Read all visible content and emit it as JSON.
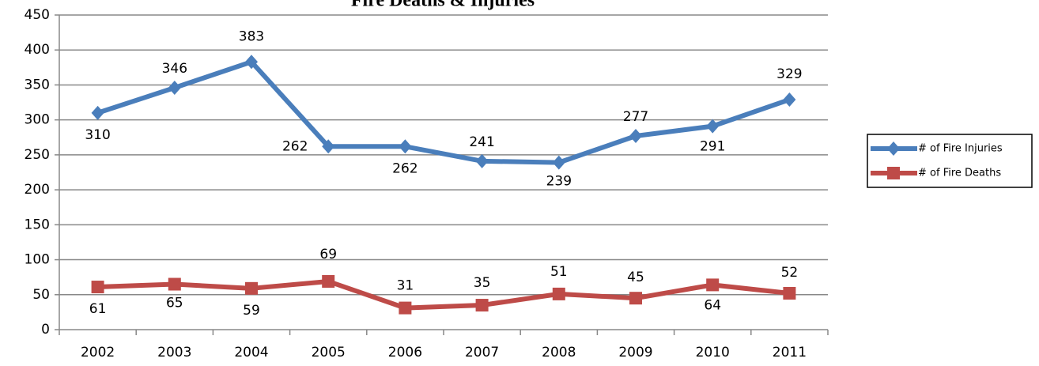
{
  "chart_data": {
    "type": "line",
    "title": "Fire Deaths & Injuries",
    "categories": [
      "2002",
      "2003",
      "2004",
      "2005",
      "2006",
      "2007",
      "2008",
      "2009",
      "2010",
      "2011"
    ],
    "series": [
      {
        "name": "# of Fire Injuries",
        "color": "#4a7ebb",
        "marker": "diamond",
        "values": [
          310,
          346,
          383,
          262,
          262,
          241,
          239,
          277,
          291,
          329
        ]
      },
      {
        "name": "# of Fire Deaths",
        "color": "#be4b48",
        "marker": "square",
        "values": [
          61,
          65,
          59,
          69,
          31,
          35,
          51,
          45,
          64,
          52
        ]
      }
    ],
    "ylim": [
      0,
      450
    ],
    "yticks": [
      0,
      50,
      100,
      150,
      200,
      250,
      300,
      350,
      400,
      450
    ],
    "grid": true,
    "legend": "right"
  }
}
